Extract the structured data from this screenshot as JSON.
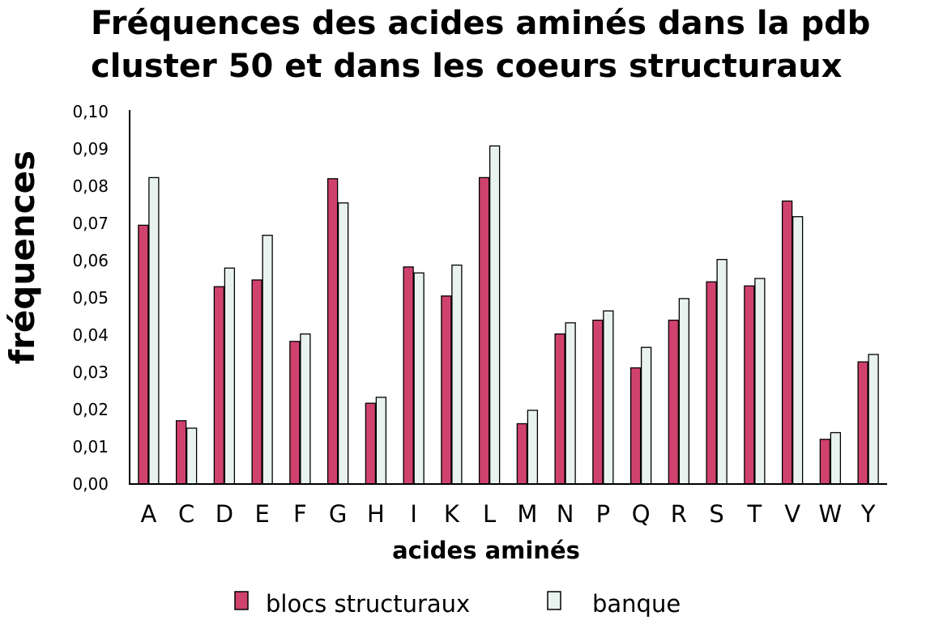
{
  "chart_data": {
    "type": "bar",
    "title_line1": "Fréquences des acides aminés dans la pdb",
    "title_line2": "cluster 50 et dans les coeurs structuraux",
    "xlabel": "acides aminés",
    "ylabel": "fréquences",
    "ylim": [
      0,
      0.1
    ],
    "yticks": [
      "0,00",
      "0,01",
      "0,02",
      "0,03",
      "0,04",
      "0,05",
      "0,06",
      "0,07",
      "0,08",
      "0,09",
      "0,10"
    ],
    "categories": [
      "A",
      "C",
      "D",
      "E",
      "F",
      "G",
      "H",
      "I",
      "K",
      "L",
      "M",
      "N",
      "P",
      "Q",
      "R",
      "S",
      "T",
      "V",
      "W",
      "Y"
    ],
    "series": [
      {
        "name": "blocs structuraux",
        "color": "#d0426e",
        "values": [
          0.0695,
          0.017,
          0.053,
          0.0548,
          0.0383,
          0.082,
          0.0217,
          0.0583,
          0.0505,
          0.0823,
          0.0162,
          0.0403,
          0.044,
          0.0312,
          0.044,
          0.0543,
          0.0532,
          0.076,
          0.012,
          0.0328
        ]
      },
      {
        "name": "banque",
        "color": "#e8f2ef",
        "values": [
          0.0823,
          0.015,
          0.058,
          0.0668,
          0.0403,
          0.0755,
          0.0233,
          0.0567,
          0.0588,
          0.0908,
          0.0198,
          0.0433,
          0.0465,
          0.0367,
          0.0498,
          0.0603,
          0.0552,
          0.0718,
          0.0138,
          0.0348
        ]
      }
    ],
    "grid": false,
    "legend_position": "bottom"
  }
}
